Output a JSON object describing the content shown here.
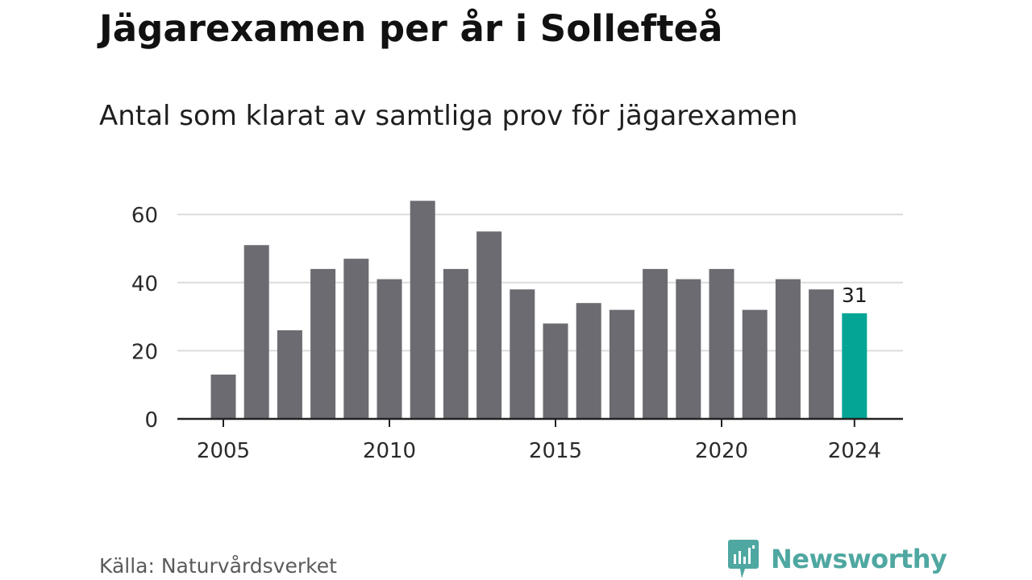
{
  "title": "Jägarexamen per år i Sollefteå",
  "subtitle": "Antal som klarat av samtliga prov för jägarexamen",
  "source": "Källa: Naturvårdsverket",
  "brand": {
    "name": "Newsworthy",
    "logo_icon": "bar-chart-speech-bubble-icon",
    "color": "#4fa7a1"
  },
  "colors": {
    "bar": "#6c6b71",
    "highlight": "#05a596",
    "grid": "#dcdcdc",
    "axis": "#222222",
    "tick_text": "#2a2a2a"
  },
  "chart_data": {
    "type": "bar",
    "categories": [
      "2005",
      "2006",
      "2007",
      "2008",
      "2009",
      "2010",
      "2011",
      "2012",
      "2013",
      "2014",
      "2015",
      "2016",
      "2017",
      "2018",
      "2019",
      "2020",
      "2021",
      "2022",
      "2023",
      "2024"
    ],
    "values": [
      13,
      51,
      26,
      44,
      47,
      41,
      64,
      44,
      55,
      38,
      28,
      34,
      32,
      44,
      41,
      44,
      32,
      41,
      38,
      31
    ],
    "highlight": "2024",
    "data_labels": [
      {
        "category": "2024",
        "text": "31"
      }
    ],
    "x_ticks": [
      "2005",
      "2010",
      "2015",
      "2020",
      "2024"
    ],
    "y_ticks": [
      0,
      20,
      40,
      60
    ],
    "ylim": [
      0,
      66
    ],
    "grid": true,
    "xlabel": "",
    "ylabel": ""
  }
}
